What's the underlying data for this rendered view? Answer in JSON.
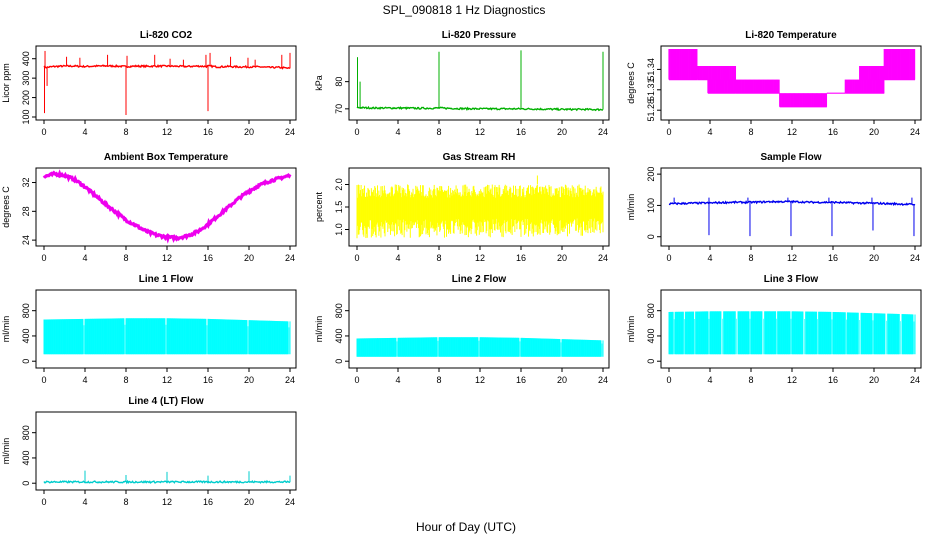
{
  "figure": {
    "title": "SPL_090818  1 Hz Diagnostics",
    "xlabel": "Hour of Day (UTC)"
  },
  "chart_data": [
    {
      "type": "line",
      "title": "Li-820 CO2",
      "ylabel": "Licor ppm",
      "color": "#ff0000",
      "xlim": [
        0,
        24
      ],
      "ylim": [
        100,
        450
      ],
      "xticks": [
        0,
        4,
        8,
        12,
        16,
        20,
        24
      ],
      "yticks": [
        100,
        200,
        300,
        400
      ],
      "x": [
        0,
        0.2,
        1,
        2,
        3,
        4,
        5,
        6,
        7,
        7.9,
        8,
        8.1,
        9,
        10,
        11,
        12,
        13,
        14,
        15,
        15.9,
        16,
        16.1,
        17,
        18,
        19,
        20,
        21,
        22,
        23,
        24
      ],
      "y": [
        360,
        355,
        360,
        362,
        362,
        360,
        362,
        363,
        362,
        360,
        358,
        360,
        362,
        361,
        362,
        362,
        361,
        360,
        362,
        360,
        363,
        362,
        358,
        360,
        358,
        358,
        358,
        355,
        355,
        350
      ],
      "spikes_up": [
        [
          0.1,
          440
        ],
        [
          2.2,
          410
        ],
        [
          3.5,
          405
        ],
        [
          6.2,
          420
        ],
        [
          8.1,
          415
        ],
        [
          10.8,
          420
        ],
        [
          12.3,
          400
        ],
        [
          13.6,
          395
        ],
        [
          15.8,
          420
        ],
        [
          16.2,
          430
        ],
        [
          18.2,
          410
        ],
        [
          19.9,
          405
        ],
        [
          20.6,
          395
        ],
        [
          23.2,
          420
        ],
        [
          24,
          430
        ]
      ],
      "spikes_down": [
        [
          0.05,
          120
        ],
        [
          0.3,
          260
        ],
        [
          8.0,
          110
        ],
        [
          16.0,
          130
        ]
      ]
    },
    {
      "type": "line",
      "title": "Li-820 Pressure",
      "ylabel": "kPa",
      "color": "#00b000",
      "xlim": [
        0,
        24
      ],
      "ylim": [
        67,
        92
      ],
      "xticks": [
        0,
        4,
        8,
        12,
        16,
        20,
        24
      ],
      "yticks": [
        70,
        80
      ],
      "x": [
        0,
        0.5,
        2,
        4,
        6,
        8,
        10,
        12,
        14,
        16,
        18,
        20,
        22,
        24
      ],
      "y": [
        70.5,
        70.4,
        70.3,
        70.3,
        70.2,
        70.3,
        70.1,
        70.0,
        70.0,
        70.0,
        69.9,
        69.8,
        69.8,
        69.7
      ],
      "spikes_up": [
        [
          0.05,
          89
        ],
        [
          0.3,
          80
        ],
        [
          8.0,
          91
        ],
        [
          16.0,
          91.5
        ],
        [
          24.0,
          91
        ]
      ]
    },
    {
      "type": "line",
      "title": "Li-820 Temperature",
      "ylabel": "degrees C",
      "color": "#ff00ff",
      "xlim": [
        0,
        24
      ],
      "ylim": [
        51.27,
        51.37
      ],
      "xticks": [
        0,
        4,
        8,
        12,
        16,
        20,
        24
      ],
      "yticks": [
        51.28,
        51.31,
        51.34
      ],
      "yticklabels": [
        "51.28",
        "51.31",
        "51.34"
      ],
      "levels": [
        {
          "x0": 0.0,
          "x1": 2.8,
          "lo": 51.325,
          "hi": 51.37
        },
        {
          "x0": 2.8,
          "x1": 6.5,
          "lo": 51.325,
          "hi": 51.345
        },
        {
          "x0": 3.8,
          "x1": 6.5,
          "lo": 51.305,
          "hi": 51.325
        },
        {
          "x0": 6.5,
          "x1": 10.8,
          "lo": 51.305,
          "hi": 51.325
        },
        {
          "x0": 10.8,
          "x1": 15.4,
          "lo": 51.285,
          "hi": 51.305
        },
        {
          "x0": 15.4,
          "x1": 17.2,
          "lo": 51.305,
          "hi": 51.305
        },
        {
          "x0": 17.2,
          "x1": 21.0,
          "lo": 51.305,
          "hi": 51.325
        },
        {
          "x0": 18.6,
          "x1": 21.0,
          "lo": 51.325,
          "hi": 51.345
        },
        {
          "x0": 21.0,
          "x1": 24.0,
          "lo": 51.325,
          "hi": 51.37
        }
      ]
    },
    {
      "type": "line",
      "title": "Ambient Box Temperature",
      "ylabel": "degrees C",
      "color": "#ee00ee",
      "xlim": [
        0,
        24
      ],
      "ylim": [
        23.6,
        33.6
      ],
      "xticks": [
        0,
        4,
        8,
        12,
        16,
        20,
        24
      ],
      "yticks": [
        24,
        28,
        32
      ],
      "x": [
        0,
        1,
        2,
        3,
        4,
        5,
        6,
        7,
        8,
        9,
        10,
        11,
        12,
        13,
        14,
        15,
        16,
        17,
        18,
        19,
        20,
        21,
        22,
        23,
        24
      ],
      "y": [
        32.8,
        33.2,
        33.0,
        32.4,
        31.4,
        30.2,
        29.0,
        27.9,
        26.8,
        26.0,
        25.2,
        24.7,
        24.4,
        24.3,
        24.6,
        25.2,
        26.2,
        27.4,
        28.6,
        29.8,
        30.8,
        31.6,
        32.2,
        32.6,
        33.0
      ]
    },
    {
      "type": "area",
      "title": "Gas Stream RH",
      "ylabel": "percent",
      "color": "#ffff00",
      "xlim": [
        0,
        24
      ],
      "ylim": [
        0.7,
        2.3
      ],
      "xticks": [
        0,
        4,
        8,
        12,
        16,
        20,
        24
      ],
      "yticks": [
        1.0,
        1.5,
        2.0
      ],
      "yticklabels": [
        "1.0",
        "1.5",
        "2.0"
      ],
      "x": [
        0,
        24
      ],
      "lower": [
        0.8,
        0.85
      ],
      "upper": [
        2.0,
        2.0
      ],
      "peak": [
        17.6,
        2.2
      ]
    },
    {
      "type": "line",
      "title": "Sample Flow",
      "ylabel": "ml/min",
      "color": "#0000ee",
      "xlim": [
        0,
        24
      ],
      "ylim": [
        -20,
        210
      ],
      "xticks": [
        0,
        4,
        8,
        12,
        16,
        20,
        24
      ],
      "yticks": [
        0,
        100,
        200
      ],
      "x": [
        0,
        2,
        4,
        6,
        8,
        10,
        12,
        14,
        16,
        18,
        20,
        22,
        24
      ],
      "y": [
        105,
        107,
        108,
        110,
        110,
        112,
        112,
        110,
        110,
        108,
        107,
        105,
        103
      ],
      "spikes_down": [
        [
          3.9,
          5
        ],
        [
          7.9,
          2
        ],
        [
          11.9,
          2
        ],
        [
          15.9,
          2
        ],
        [
          19.9,
          20
        ],
        [
          23.9,
          2
        ]
      ],
      "spikes_up": [
        [
          0.5,
          125
        ],
        [
          3.9,
          125
        ],
        [
          7.7,
          125
        ],
        [
          11.6,
          125
        ],
        [
          15.6,
          125
        ],
        [
          19.8,
          125
        ],
        [
          23.7,
          125
        ]
      ]
    },
    {
      "type": "area",
      "title": "Line 1 Flow",
      "ylabel": "ml/min",
      "color": "#00ffff",
      "xlim": [
        0,
        24
      ],
      "ylim": [
        -60,
        1080
      ],
      "xticks": [
        0,
        4,
        8,
        12,
        16,
        20,
        24
      ],
      "yticks": [
        0,
        400,
        800
      ],
      "x": [
        0,
        4,
        8,
        12,
        16,
        20,
        24
      ],
      "lower": [
        110,
        110,
        110,
        110,
        110,
        110,
        110
      ],
      "upper": [
        660,
        670,
        680,
        680,
        670,
        650,
        630
      ],
      "gaps": [
        3.9,
        7.9,
        11.9,
        15.9,
        19.9,
        23.9
      ]
    },
    {
      "type": "area",
      "title": "Line 2 Flow",
      "ylabel": "ml/min",
      "color": "#00ffff",
      "xlim": [
        0,
        24
      ],
      "ylim": [
        -60,
        1080
      ],
      "xticks": [
        0,
        4,
        8,
        12,
        16,
        20,
        24
      ],
      "yticks": [
        0,
        400,
        800
      ],
      "x": [
        0,
        4,
        8,
        12,
        16,
        20,
        24
      ],
      "lower": [
        70,
        70,
        70,
        70,
        70,
        70,
        70
      ],
      "upper": [
        360,
        370,
        380,
        380,
        370,
        350,
        330
      ],
      "gaps": [
        3.9,
        7.9,
        11.9,
        15.9,
        19.9,
        23.9
      ]
    },
    {
      "type": "area",
      "title": "Line 3 Flow",
      "ylabel": "ml/min",
      "color": "#00ffff",
      "xlim": [
        0,
        24
      ],
      "ylim": [
        -60,
        1080
      ],
      "xticks": [
        0,
        4,
        8,
        12,
        16,
        20,
        24
      ],
      "yticks": [
        0,
        400,
        800
      ],
      "x": [
        0,
        4,
        8,
        12,
        16,
        20,
        24
      ],
      "lower": [
        110,
        110,
        110,
        110,
        110,
        110,
        110
      ],
      "upper": [
        780,
        790,
        790,
        790,
        780,
        760,
        740
      ],
      "gaps": [
        0.5,
        1.5,
        2.5,
        3.9,
        5.2,
        6.6,
        7.9,
        9.2,
        10.5,
        11.9,
        13.2,
        14.5,
        15.9,
        17.3,
        18.6,
        19.9,
        21.2,
        22.6,
        23.9
      ]
    },
    {
      "type": "line",
      "title": "Line 4 (LT) Flow",
      "ylabel": "ml/min",
      "color": "#00cccc",
      "xlim": [
        0,
        24
      ],
      "ylim": [
        -60,
        1080
      ],
      "xticks": [
        0,
        4,
        8,
        12,
        16,
        20,
        24
      ],
      "yticks": [
        0,
        400,
        800
      ],
      "x": [
        0,
        4,
        8,
        12,
        16,
        20,
        24
      ],
      "y": [
        20,
        20,
        20,
        20,
        20,
        20,
        20
      ],
      "spikes_up": [
        [
          4.0,
          200
        ],
        [
          8.0,
          130
        ],
        [
          12.0,
          180
        ],
        [
          16.0,
          120
        ],
        [
          20.0,
          190
        ],
        [
          24.0,
          120
        ]
      ]
    }
  ]
}
